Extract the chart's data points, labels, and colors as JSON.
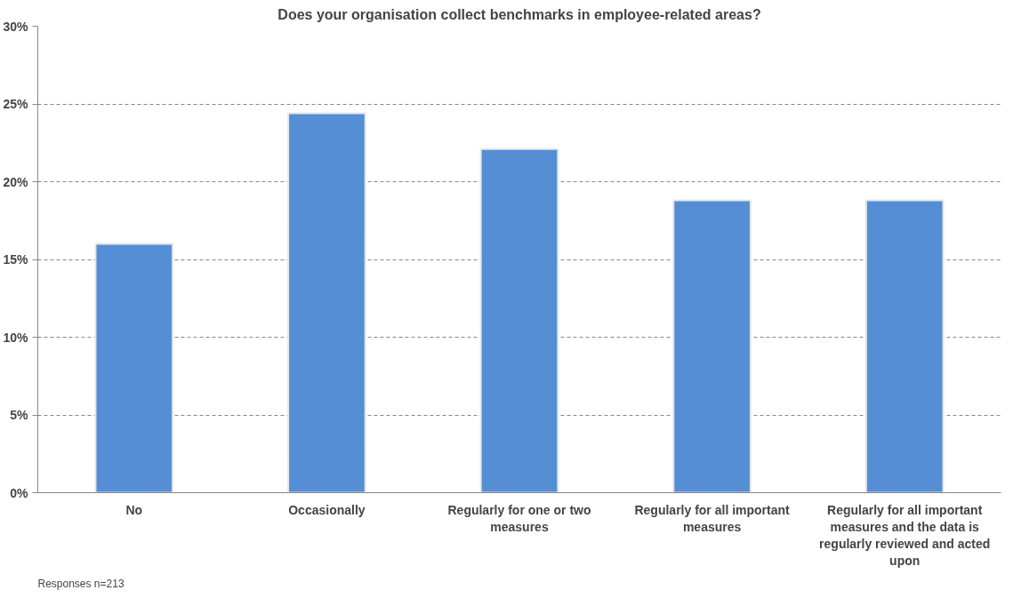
{
  "chart_data": {
    "type": "bar",
    "title": "Does your organisation collect benchmarks in employee-related areas?",
    "categories": [
      "No",
      "Occasionally",
      "Regularly for one or two measures",
      "Regularly for all important measures",
      "Regularly for all important measures and the data is regularly reviewed and acted upon"
    ],
    "values": [
      16.0,
      24.4,
      22.1,
      18.8,
      18.8
    ],
    "color": "#558ed5",
    "ylim": [
      0,
      30
    ],
    "yticks": [
      {
        "value": 0,
        "label": "0%"
      },
      {
        "value": 5,
        "label": "5%"
      },
      {
        "value": 10,
        "label": "10%"
      },
      {
        "value": 15,
        "label": "15%"
      },
      {
        "value": 20,
        "label": "20%"
      },
      {
        "value": 25,
        "label": "25%"
      },
      {
        "value": 30,
        "label": "30%"
      }
    ],
    "grid": "y",
    "annotations": [
      "Responses n=213"
    ]
  }
}
